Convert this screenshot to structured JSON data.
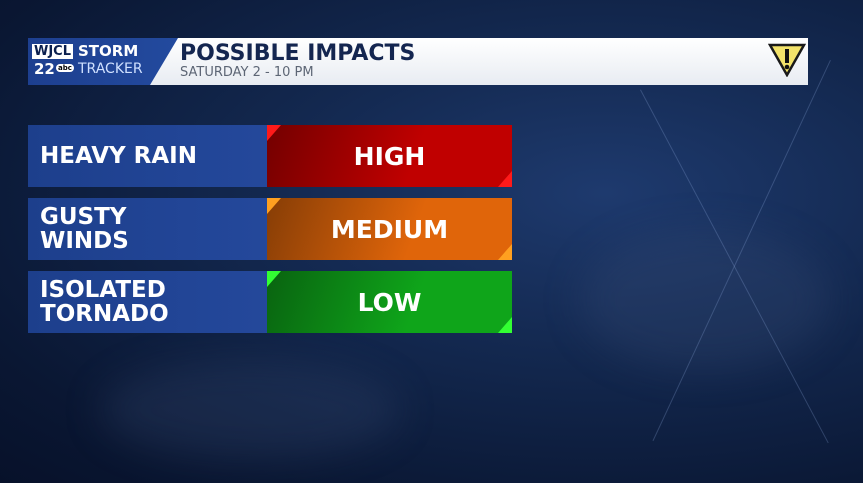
{
  "logo": {
    "station": "WJCL",
    "channel": "22",
    "network": "abc",
    "brand_line1": "STORM",
    "brand_line2": "TRACKER"
  },
  "header": {
    "title": "POSSIBLE IMPACTS",
    "subtitle": "SATURDAY 2 - 10 PM",
    "icon": "warning-triangle-icon"
  },
  "impacts": [
    {
      "hazard": "HEAVY RAIN",
      "level": "HIGH",
      "color": "#c00000",
      "accent": "#ff1a1a"
    },
    {
      "hazard": "GUSTY\nWINDS",
      "level": "MEDIUM",
      "color": "#e0650a",
      "accent": "#ffa020"
    },
    {
      "hazard": "ISOLATED\nTORNADO",
      "level": "LOW",
      "color": "#0fa51a",
      "accent": "#33ff33"
    }
  ]
}
